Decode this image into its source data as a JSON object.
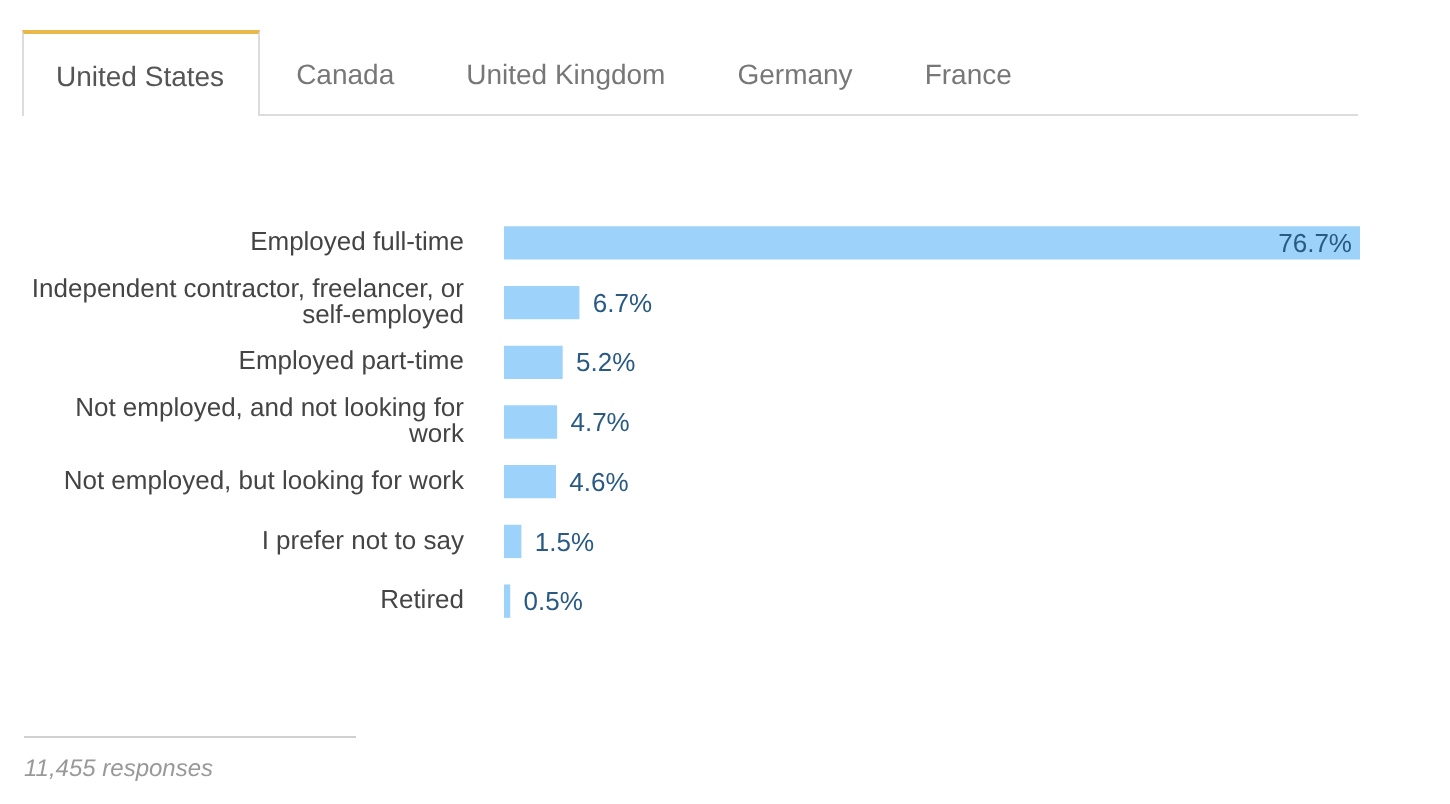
{
  "chart_data": {
    "type": "bar",
    "orientation": "horizontal",
    "categories": [
      "Employed full-time",
      "Independent contractor, freelancer, or self-employed",
      "Employed part-time",
      "Not employed, and not looking for work",
      "Not employed, but looking for work",
      "I prefer not to say",
      "Retired"
    ],
    "values": [
      76.7,
      6.7,
      5.2,
      4.7,
      4.6,
      1.5,
      0.5
    ],
    "value_labels": [
      "76.7%",
      "6.7%",
      "5.2%",
      "4.7%",
      "4.6%",
      "1.5%",
      "0.5%"
    ],
    "color": "#9dd3fa",
    "tick_labels": "y",
    "annotations": [
      "United States",
      "Canada",
      "United Kingdom",
      "Germany",
      "France",
      "11,455 responses"
    ]
  }
}
